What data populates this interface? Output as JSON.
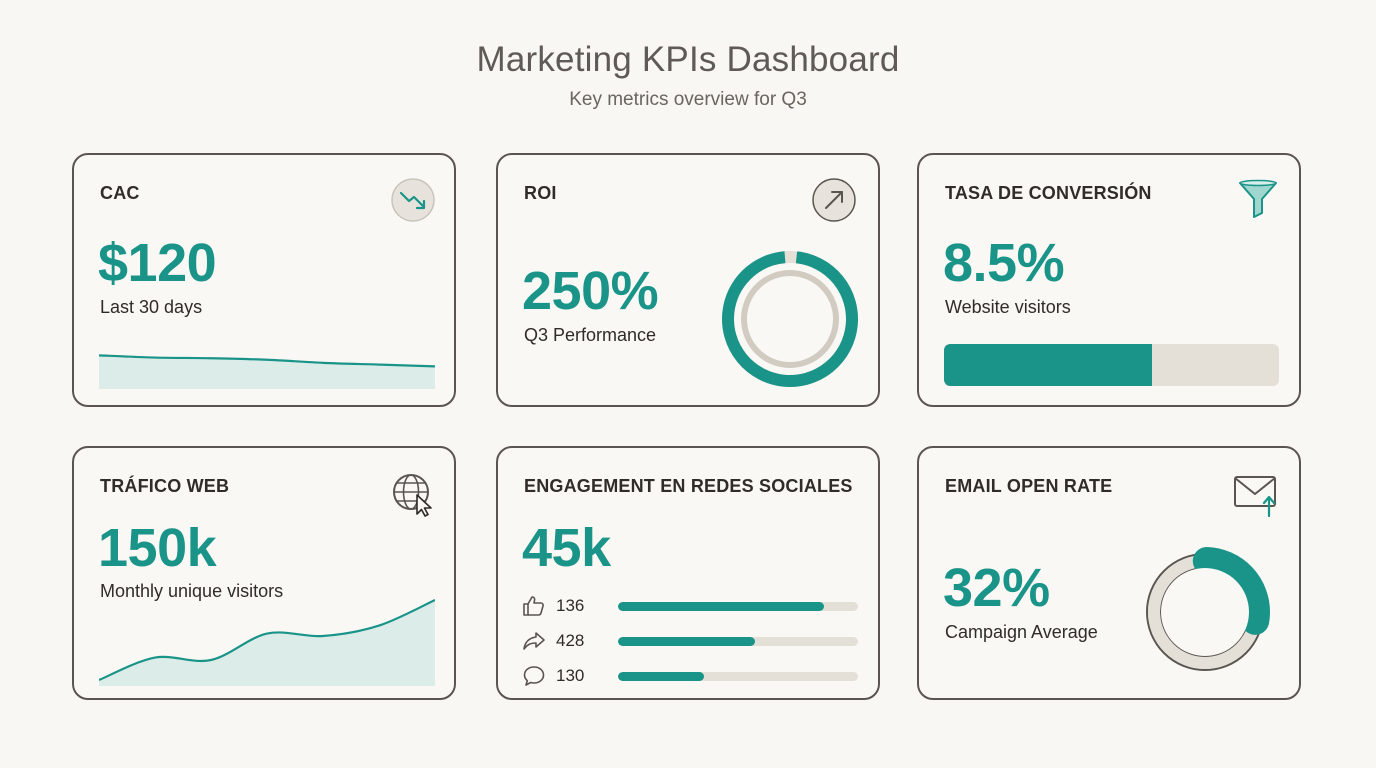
{
  "header": {
    "title": "Marketing KPIs Dashboard",
    "subtitle": "Key metrics overview for Q3"
  },
  "colors": {
    "accent": "#1a9488",
    "accent_light": "#dcede9",
    "track": "#e4e0d8",
    "border": "#5a5550",
    "background": "#f8f7f3"
  },
  "cards": {
    "cac": {
      "label": "CAC",
      "value": "$120",
      "caption": "Last 30 days",
      "icon": "trend-down-icon",
      "sparkline": [
        0.62,
        0.52,
        0.49,
        0.42,
        0.28,
        0.2,
        0.12
      ]
    },
    "roi": {
      "label": "ROI",
      "value": "250%",
      "caption": "Q3 Performance",
      "icon": "arrow-up-right-icon",
      "ring_fraction": 1.0
    },
    "conversion": {
      "label": "TASA DE CONVERSIÓN",
      "value": "8.5%",
      "caption": "Website visitors",
      "icon": "funnel-icon",
      "progress_fraction": 0.62
    },
    "traffic": {
      "label": "TRÁFICO WEB",
      "value": "150k",
      "caption": "Monthly unique visitors",
      "icon": "globe-cursor-icon",
      "trend": [
        0.0,
        0.28,
        0.25,
        0.58,
        0.55,
        0.68,
        1.0
      ]
    },
    "social": {
      "label": "ENGAGEMENT EN REDES SOCIALES",
      "value": "45k",
      "rows": [
        {
          "icon": "thumbs-up-icon",
          "count": "136",
          "fraction": 0.86
        },
        {
          "icon": "share-icon",
          "count": "428",
          "fraction": 0.57
        },
        {
          "icon": "comment-icon",
          "count": "130",
          "fraction": 0.36
        }
      ]
    },
    "email": {
      "label": "EMAIL OPEN RATE",
      "value": "32%",
      "caption": "Campaign Average",
      "icon": "mail-arrow-up-icon",
      "ring_fraction": 0.32
    }
  }
}
